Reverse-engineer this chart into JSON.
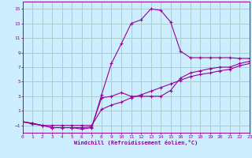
{
  "xlabel": "Windchill (Refroidissement éolien,°C)",
  "bg_color": "#cceeff",
  "line_color": "#990099",
  "grid_color": "#aacccc",
  "xlim": [
    0,
    23
  ],
  "ylim": [
    -2,
    16
  ],
  "xticks": [
    0,
    1,
    2,
    3,
    4,
    5,
    6,
    7,
    8,
    9,
    10,
    11,
    12,
    13,
    14,
    15,
    16,
    17,
    18,
    19,
    20,
    21,
    22,
    23
  ],
  "yticks": [
    -1,
    1,
    3,
    5,
    7,
    9,
    11,
    13,
    15
  ],
  "curve1_x": [
    0,
    1,
    2,
    3,
    4,
    5,
    6,
    7,
    8,
    9,
    10,
    11,
    12,
    13,
    14,
    15,
    16,
    17,
    18,
    19,
    20,
    21,
    22,
    23
  ],
  "curve1_y": [
    -0.5,
    -0.8,
    -1.0,
    -1.3,
    -1.3,
    -1.3,
    -1.5,
    -1.3,
    3.2,
    7.5,
    10.2,
    13.0,
    13.5,
    15.0,
    14.8,
    13.2,
    9.2,
    8.3,
    8.3,
    8.3,
    8.3,
    8.3,
    8.2,
    8.2
  ],
  "curve2_x": [
    0,
    1,
    2,
    3,
    4,
    5,
    6,
    7,
    8,
    9,
    10,
    11,
    12,
    13,
    14,
    15,
    16,
    17,
    18,
    19,
    20,
    21,
    22,
    23
  ],
  "curve2_y": [
    -0.5,
    -0.7,
    -1.0,
    -1.3,
    -1.3,
    -1.3,
    -1.3,
    -1.2,
    2.8,
    3.0,
    3.5,
    3.0,
    3.0,
    3.0,
    3.0,
    3.8,
    5.5,
    6.2,
    6.5,
    6.8,
    7.0,
    7.0,
    7.5,
    7.8
  ],
  "curve3_x": [
    0,
    1,
    2,
    3,
    4,
    5,
    6,
    7,
    8,
    9,
    10,
    11,
    12,
    13,
    14,
    15,
    16,
    17,
    18,
    19,
    20,
    21,
    22,
    23
  ],
  "curve3_y": [
    -0.5,
    -0.7,
    -1.0,
    -1.0,
    -1.0,
    -1.0,
    -1.0,
    -1.0,
    1.2,
    1.8,
    2.2,
    2.8,
    3.2,
    3.7,
    4.2,
    4.7,
    5.2,
    5.7,
    6.0,
    6.2,
    6.5,
    6.7,
    7.2,
    7.5
  ]
}
